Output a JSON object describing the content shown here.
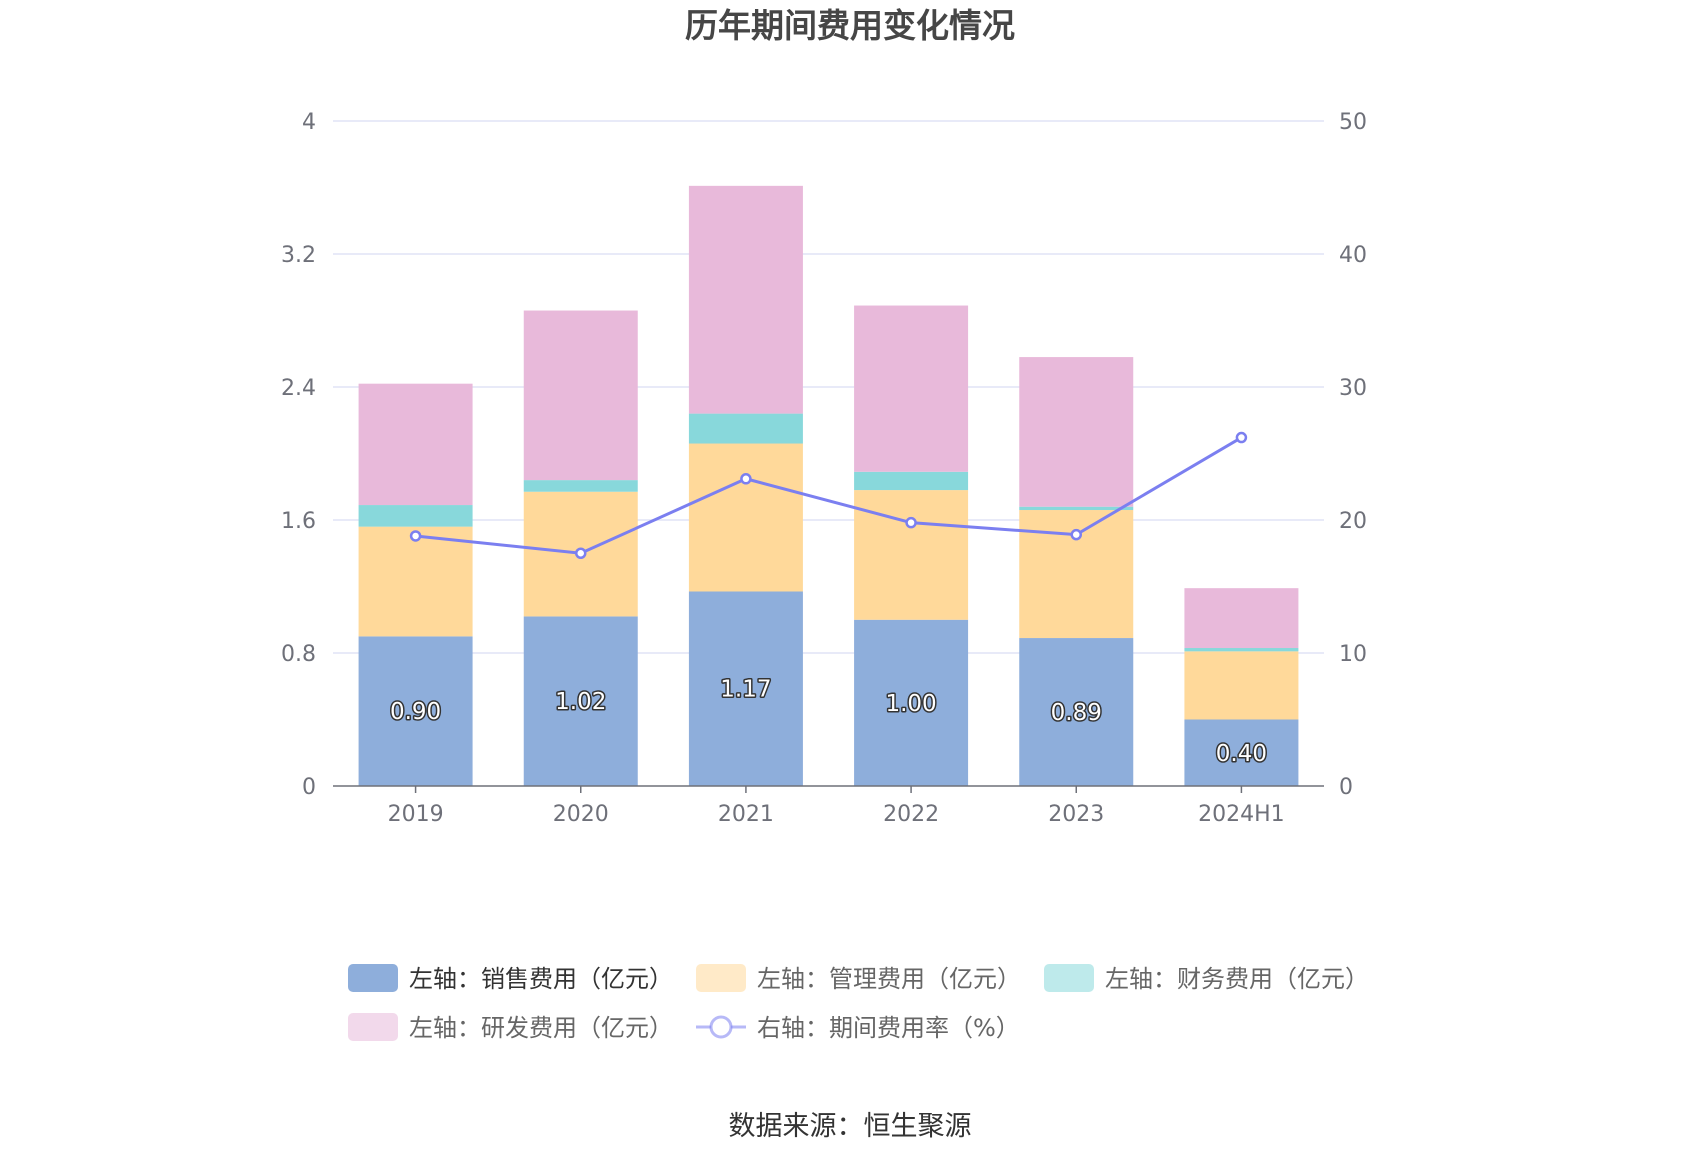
{
  "chart_data": {
    "type": "bar",
    "title": "历年期间费用变化情况",
    "categories": [
      "2019",
      "2020",
      "2021",
      "2022",
      "2023",
      "2024H1"
    ],
    "left_axis": {
      "ylim": [
        0,
        4
      ],
      "ticks": [
        "0",
        "0.8",
        "1.6",
        "2.4",
        "3.2",
        "4"
      ]
    },
    "right_axis": {
      "ylim": [
        0,
        50
      ],
      "ticks": [
        "0",
        "10",
        "20",
        "30",
        "40",
        "50"
      ]
    },
    "series": [
      {
        "name": "左轴：销售费用（亿元）",
        "type": "bar",
        "axis": "left",
        "color": "#8eaedb",
        "values": [
          0.9,
          1.02,
          1.17,
          1.0,
          0.89,
          0.4
        ],
        "labels": [
          "0.90",
          "1.02",
          "1.17",
          "1.00",
          "0.89",
          "0.40"
        ]
      },
      {
        "name": "左轴：管理费用（亿元）",
        "type": "bar",
        "axis": "left",
        "color": "#ffd99a",
        "values": [
          0.66,
          0.75,
          0.89,
          0.78,
          0.77,
          0.41
        ]
      },
      {
        "name": "左轴：财务费用（亿元）",
        "type": "bar",
        "axis": "left",
        "color": "#88d8db",
        "values": [
          0.13,
          0.07,
          0.18,
          0.11,
          0.02,
          0.02
        ]
      },
      {
        "name": "左轴：研发费用（亿元）",
        "type": "bar",
        "axis": "left",
        "color": "#e8b9da",
        "values": [
          0.73,
          1.02,
          1.37,
          1.0,
          0.9,
          0.36
        ]
      },
      {
        "name": "右轴：期间费用率（%）",
        "type": "line",
        "axis": "right",
        "color": "#7b7ff0",
        "values": [
          18.8,
          17.5,
          23.1,
          19.8,
          18.9,
          26.2
        ]
      }
    ],
    "legend_position": "bottom",
    "grid": true
  },
  "source": "数据来源：恒生聚源"
}
